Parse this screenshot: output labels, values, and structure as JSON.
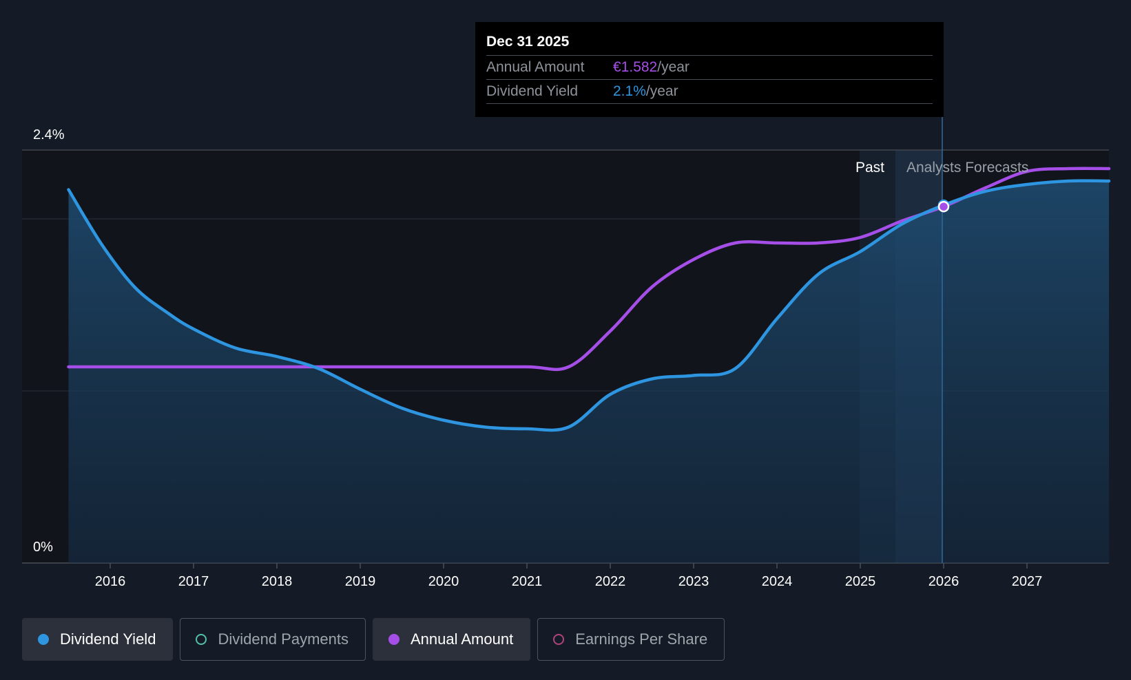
{
  "chart_data": {
    "type": "line",
    "x_ticks": [
      "2016",
      "2017",
      "2018",
      "2019",
      "2020",
      "2021",
      "2022",
      "2023",
      "2024",
      "2025",
      "2026",
      "2027"
    ],
    "y_ticks": [
      "2.4%",
      "0%"
    ],
    "ylim_yield_percent": [
      0,
      2.4
    ],
    "grid": true,
    "regions": {
      "past_label": "Past",
      "forecast_label": "Analysts Forecasts"
    },
    "series": [
      {
        "name": "Dividend Yield",
        "color": "#2e95e0",
        "unit": "%",
        "x": [
          2015.5,
          2015.9,
          2016.3,
          2016.7,
          2017.0,
          2017.5,
          2018.0,
          2018.5,
          2019.0,
          2019.5,
          2020.0,
          2020.5,
          2021.0,
          2021.5,
          2022.0,
          2022.5,
          2023.0,
          2023.5,
          2024.0,
          2024.5,
          2025.0,
          2025.5,
          2026.0,
          2026.5,
          2027.0,
          2027.5,
          2028.0
        ],
        "values": [
          2.17,
          1.85,
          1.6,
          1.45,
          1.36,
          1.25,
          1.2,
          1.13,
          1.01,
          0.9,
          0.83,
          0.79,
          0.78,
          0.79,
          0.98,
          1.07,
          1.09,
          1.13,
          1.42,
          1.68,
          1.81,
          1.97,
          2.08,
          2.16,
          2.2,
          2.22,
          2.22
        ]
      },
      {
        "name": "Annual Amount",
        "color": "#a64fe8",
        "unit": "EUR/year",
        "x": [
          2015.5,
          2016.0,
          2017.0,
          2018.0,
          2019.0,
          2020.0,
          2021.0,
          2021.5,
          2022.0,
          2022.5,
          2023.0,
          2023.5,
          2024.0,
          2024.5,
          2025.0,
          2025.5,
          2026.0,
          2026.5,
          2027.0,
          2027.5,
          2028.0
        ],
        "values": [
          1.0,
          1.0,
          1.0,
          1.0,
          1.0,
          1.0,
          1.0,
          1.0,
          1.13,
          1.29,
          1.39,
          1.45,
          1.45,
          1.45,
          1.47,
          1.53,
          1.582,
          1.65,
          1.71,
          1.72,
          1.72
        ]
      }
    ],
    "highlight": {
      "date": "Dec 31 2025",
      "x": 2026.0,
      "annual_amount": "€1.582",
      "dividend_yield": "2.1%"
    }
  },
  "tooltip": {
    "date": "Dec 31 2025",
    "amount_label": "Annual Amount",
    "amount_value": "€1.582",
    "amount_unit": "/year",
    "yield_label": "Dividend Yield",
    "yield_value": "2.1%",
    "yield_unit": "/year"
  },
  "legend": [
    {
      "label": "Dividend Yield",
      "active": true,
      "dot_color": "#2e95e0",
      "filled": true
    },
    {
      "label": "Dividend Payments",
      "active": false,
      "dot_color": "#53c1a8",
      "filled": false
    },
    {
      "label": "Annual Amount",
      "active": true,
      "dot_color": "#a64fe8",
      "filled": true
    },
    {
      "label": "Earnings Per Share",
      "active": false,
      "dot_color": "#b0447a",
      "filled": false
    }
  ]
}
